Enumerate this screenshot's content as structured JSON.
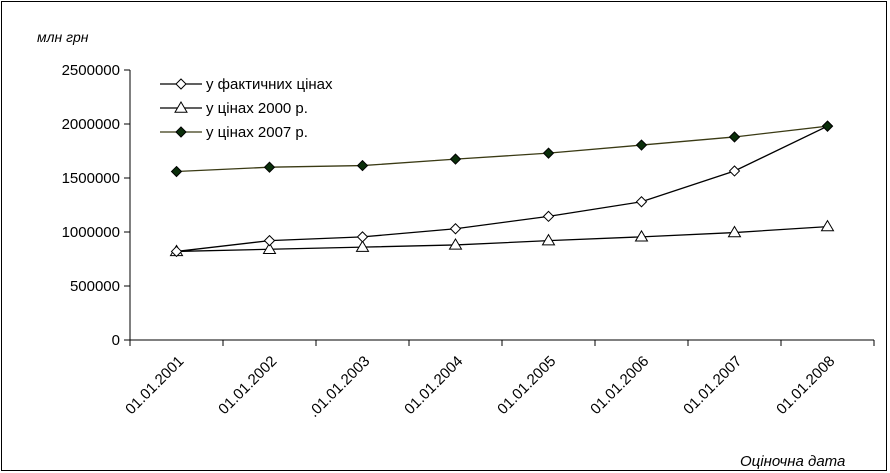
{
  "chart_data": {
    "type": "line",
    "title": "",
    "ylabel": "млн грн",
    "xlabel": "Оціночна дата",
    "categories": [
      "01.01.2001",
      "01.01.2002",
      ".01.01.2003",
      "01.01.2004",
      "01.01.2005",
      "01.01.2006",
      "01.01.2007",
      "01.01.2008"
    ],
    "ylim": [
      0,
      2500000
    ],
    "yticks": [
      "0",
      "500000",
      "1000000",
      "1500000",
      "2000000",
      "2500000"
    ],
    "grid": false,
    "legend_position": "top-left",
    "series": [
      {
        "name": "у фактичних цінах",
        "marker": "open-diamond",
        "line_color": "#000000",
        "values": [
          820000,
          920000,
          955000,
          1030000,
          1145000,
          1280000,
          1565000,
          1980000
        ]
      },
      {
        "name": "у цінах 2000 р.",
        "marker": "open-triangle",
        "line_color": "#000000",
        "values": [
          820000,
          840000,
          860000,
          880000,
          920000,
          955000,
          995000,
          1050000
        ]
      },
      {
        "name": "у цінах 2007 р.",
        "marker": "filled-diamond",
        "line_color": "#3a3a14",
        "values": [
          1560000,
          1600000,
          1615000,
          1675000,
          1730000,
          1805000,
          1880000,
          1980000
        ]
      }
    ]
  }
}
